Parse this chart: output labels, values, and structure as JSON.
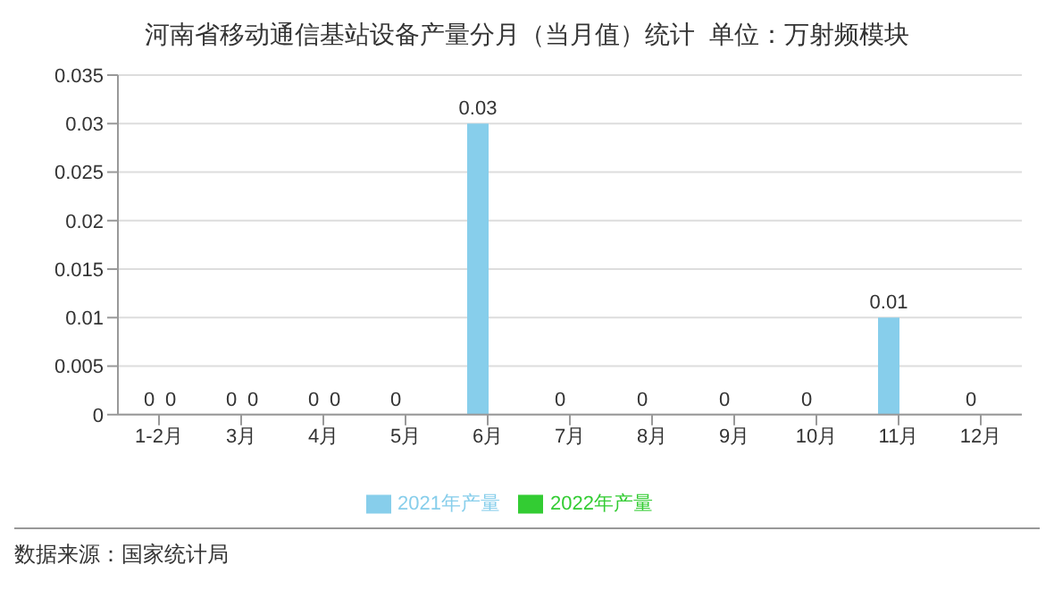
{
  "chart_data": {
    "type": "bar",
    "title": "河南省移动通信基站设备产量分月（当月值）统计  单位：万射频模块",
    "categories": [
      "1-2月",
      "3月",
      "4月",
      "5月",
      "6月",
      "7月",
      "8月",
      "9月",
      "10月",
      "11月",
      "12月"
    ],
    "series": [
      {
        "name": "2021年产量",
        "color": "#87ceeb",
        "values": [
          0,
          0,
          0,
          0,
          0.03,
          0,
          0,
          0,
          0,
          0.01,
          0
        ]
      },
      {
        "name": "2022年产量",
        "color": "#33cc33",
        "values": [
          0,
          0,
          0,
          null,
          null,
          null,
          null,
          null,
          null,
          null,
          null
        ]
      }
    ],
    "ylim": [
      0,
      0.035
    ],
    "yticks": [
      0,
      0.005,
      0.01,
      0.015,
      0.02,
      0.025,
      0.03,
      0.035
    ],
    "grid": "y",
    "legend": "bottom",
    "data_labels": true,
    "annotations": [
      "数据来源：国家统计局"
    ]
  }
}
